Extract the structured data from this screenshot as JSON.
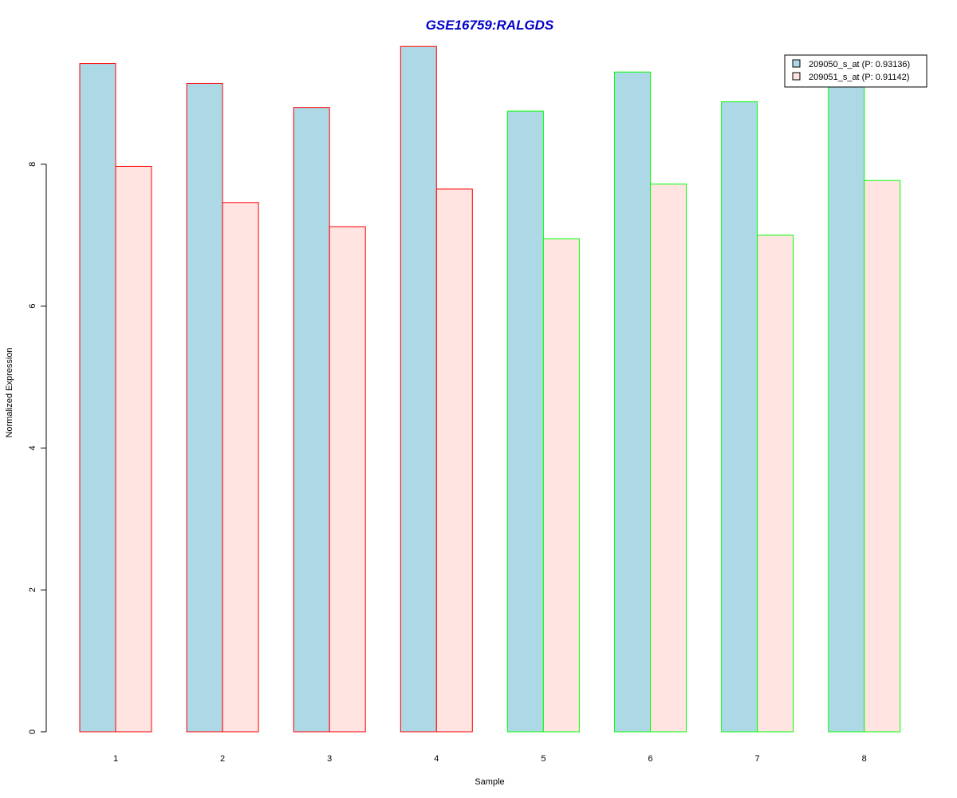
{
  "chart_data": {
    "type": "bar",
    "title": "GSE16759:RALGDS",
    "xlabel": "Sample",
    "ylabel": "Normalized Expression",
    "categories": [
      "1",
      "2",
      "3",
      "4",
      "5",
      "6",
      "7",
      "8"
    ],
    "series": [
      {
        "name": "209050_s_at (P: 0.93136)",
        "fill": "#ADD8E6",
        "values": [
          9.42,
          9.14,
          8.8,
          9.66,
          8.75,
          9.3,
          8.88,
          9.14
        ]
      },
      {
        "name": "209051_s_at (P: 0.91142)",
        "fill": "#FFE4E1",
        "values": [
          7.97,
          7.46,
          7.12,
          7.65,
          6.95,
          7.72,
          7.0,
          7.77
        ]
      }
    ],
    "group_border_colors": [
      "#FF0000",
      "#FF0000",
      "#FF0000",
      "#FF0000",
      "#00FF00",
      "#00FF00",
      "#00FF00",
      "#00FF00"
    ],
    "yticks": [
      "0",
      "2",
      "4",
      "6",
      "8"
    ],
    "ylim": [
      0,
      9.75
    ],
    "legend_position": "top-right",
    "grid": false
  }
}
